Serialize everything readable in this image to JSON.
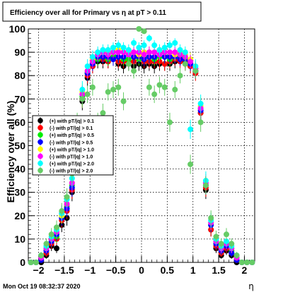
{
  "chart_data": {
    "type": "scatter",
    "title": "Efficiency over all for Primary vs  η at pT > 0.11",
    "xlabel": "η",
    "ylabel": "Efficiency over all (%)",
    "timestamp": "Mon Oct 19 08:32:37 2020",
    "xlim": [
      -2.2,
      2.2
    ],
    "ylim": [
      0,
      100
    ],
    "x_ticks": [
      -2,
      -1.5,
      -1,
      -0.5,
      0,
      0.5,
      1,
      1.5,
      2
    ],
    "x_tick_labels": [
      "−2",
      "−1.5",
      "−1",
      "−0.5",
      "0",
      "0.5",
      "1",
      "1.5",
      "2"
    ],
    "y_ticks": [
      0,
      10,
      20,
      30,
      40,
      50,
      60,
      70,
      80,
      90,
      100
    ],
    "y_tick_labels": [
      "0",
      "10",
      "20",
      "30",
      "40",
      "50",
      "60",
      "70",
      "80",
      "90",
      "100"
    ],
    "grid": true,
    "legend_position": "left-middle",
    "x": [
      -2.15,
      -2.05,
      -1.95,
      -1.85,
      -1.75,
      -1.65,
      -1.55,
      -1.45,
      -1.35,
      -1.25,
      -1.15,
      -1.05,
      -0.95,
      -0.85,
      -0.75,
      -0.65,
      -0.55,
      -0.45,
      -0.35,
      -0.25,
      -0.15,
      -0.05,
      0.05,
      0.15,
      0.25,
      0.35,
      0.45,
      0.55,
      0.65,
      0.75,
      0.85,
      0.95,
      1.05,
      1.15,
      1.25,
      1.35,
      1.45,
      1.55,
      1.65,
      1.75,
      1.85,
      1.95,
      2.05,
      2.15
    ],
    "series": [
      {
        "name": "(+) with pT/|q| > 0.1",
        "color": "#000000",
        "values": [
          0,
          0,
          0,
          3,
          7,
          6,
          16,
          19,
          30,
          52,
          69,
          79,
          84,
          86,
          86,
          86,
          87,
          85,
          84,
          85,
          84,
          85,
          84,
          85,
          84,
          85,
          85,
          85,
          86,
          87,
          86,
          84,
          82,
          64,
          31,
          14,
          6,
          3,
          5,
          3,
          0,
          0,
          0,
          0
        ]
      },
      {
        "name": "(-) with pT/|q| > 0.1",
        "color": "#ff0000",
        "values": [
          0,
          0,
          1,
          4,
          8,
          10,
          18,
          22,
          31,
          54,
          70,
          80,
          84,
          87,
          87,
          86,
          87,
          86,
          86,
          86,
          86,
          87,
          86,
          86,
          86,
          86,
          85,
          86,
          87,
          86,
          85,
          84,
          81,
          64,
          32,
          14,
          7,
          4,
          6,
          4,
          1,
          0,
          0,
          0
        ]
      },
      {
        "name": "(+) with pT/|q| > 0.5",
        "color": "#00ee00",
        "values": [
          0,
          0,
          2,
          5,
          9,
          11,
          20,
          24,
          33,
          55,
          71,
          81,
          86,
          87,
          88,
          87,
          88,
          88,
          87,
          87,
          88,
          87,
          88,
          88,
          87,
          88,
          88,
          87,
          88,
          88,
          87,
          86,
          82,
          66,
          33,
          16,
          8,
          5,
          7,
          5,
          2,
          0,
          0,
          0
        ]
      },
      {
        "name": "(-) with pT/|q| > 0.5",
        "color": "#0000ff",
        "values": [
          0,
          0,
          1,
          5,
          9,
          12,
          19,
          23,
          32,
          55,
          72,
          81,
          85,
          88,
          88,
          88,
          87,
          88,
          88,
          89,
          88,
          88,
          87,
          88,
          88,
          89,
          88,
          88,
          88,
          87,
          87,
          85,
          82,
          65,
          33,
          16,
          8,
          5,
          7,
          4,
          1,
          0,
          0,
          0
        ]
      },
      {
        "name": "(+) with pT/|q| > 1.0",
        "color": "#ffff00",
        "values": [
          0,
          0,
          2,
          6,
          10,
          13,
          20,
          25,
          34,
          57,
          73,
          82,
          87,
          89,
          90,
          90,
          90,
          91,
          90,
          90,
          90,
          89,
          90,
          90,
          90,
          91,
          90,
          90,
          89,
          90,
          89,
          87,
          83,
          67,
          34,
          17,
          9,
          6,
          8,
          6,
          2,
          0,
          0,
          0
        ]
      },
      {
        "name": "(-) with pT/|q| > 1.0",
        "color": "#ff00ff",
        "values": [
          0,
          0,
          2,
          6,
          10,
          13,
          21,
          25,
          34,
          57,
          72,
          82,
          86,
          89,
          90,
          89,
          90,
          90,
          90,
          89,
          90,
          90,
          89,
          90,
          90,
          89,
          90,
          90,
          90,
          89,
          88,
          86,
          83,
          66,
          34,
          17,
          9,
          6,
          8,
          6,
          2,
          0,
          0,
          0
        ]
      },
      {
        "name": "(+) with pT/|q| > 2.0",
        "color": "#00ffff",
        "values": [
          0,
          0,
          3,
          7,
          11,
          14,
          21,
          27,
          36,
          58,
          74,
          84,
          88,
          90,
          91,
          91,
          92,
          93,
          92,
          91,
          94,
          92,
          93,
          96,
          93,
          91,
          92,
          93,
          94,
          91,
          90,
          57,
          84,
          68,
          35,
          18,
          10,
          7,
          9,
          7,
          3,
          0,
          0,
          0
        ]
      },
      {
        "name": "(-) with pT/|q| > 2.0",
        "color": "#66cc66",
        "values": [
          0,
          0,
          3,
          8,
          12,
          15,
          22,
          28,
          38,
          60,
          70,
          72,
          75,
          60,
          64,
          73,
          74,
          75,
          69,
          85,
          82,
          100,
          99,
          75,
          72,
          76,
          75,
          60,
          74,
          80,
          85,
          42,
          82,
          60,
          33,
          19,
          11,
          8,
          12,
          8,
          3,
          0,
          0,
          0
        ]
      }
    ]
  }
}
